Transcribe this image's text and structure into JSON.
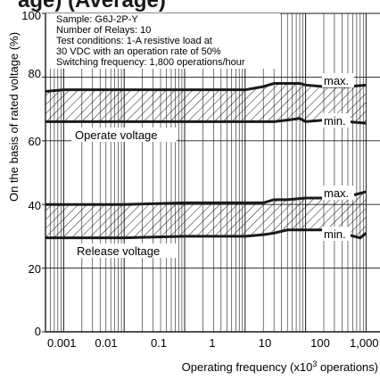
{
  "chart_data": {
    "type": "area",
    "title": "age) (Average)",
    "xlabel_main": "Operating frequency (x10",
    "xlabel_sup": "3",
    "xlabel_tail": " operations)",
    "ylabel": "On the basis of rated voltage (%)",
    "x_scale": "log",
    "xlim": [
      0.0005,
      170
    ],
    "ylim": [
      0,
      100
    ],
    "y_ticks": [
      0,
      20,
      40,
      60,
      80,
      100
    ],
    "y_tick_labels": [
      "0",
      "20",
      "40",
      "60",
      "80",
      "100"
    ],
    "x_ticks": [
      0.001,
      0.01,
      0.1,
      1,
      10,
      100,
      1000
    ],
    "x_tick_labels": [
      "0.001",
      "0.01",
      "0.1",
      "1",
      "10",
      "100",
      "1,000"
    ],
    "grid": true,
    "annotation_lines": [
      "Sample: G6J-2P-Y",
      "Number of Relays: 10",
      "Test conditions: 1-A resistive load at",
      "30 VDC with an operation rate of 50%",
      "Switching frequency: 1,800 operations/hour"
    ],
    "bands": [
      {
        "name": "Operate voltage",
        "max_label": "max.",
        "min_label": "min.",
        "x": [
          0.0005,
          0.001,
          0.01,
          0.1,
          0.5,
          1,
          2,
          3,
          5,
          8,
          10,
          20,
          50,
          100
        ],
        "max": [
          75.5,
          76,
          76,
          76,
          76,
          76,
          77,
          78,
          78,
          78,
          77.5,
          77,
          77,
          77.5
        ],
        "min": [
          66,
          66,
          66,
          66,
          66,
          66,
          66,
          66,
          66.5,
          67,
          66,
          66.5,
          66,
          65.5
        ]
      },
      {
        "name": "Release voltage",
        "max_label": "max.",
        "min_label": "min.",
        "x": [
          0.0005,
          0.001,
          0.01,
          0.1,
          0.5,
          1,
          2,
          3,
          5,
          10,
          20,
          50,
          80,
          100
        ],
        "max": [
          40,
          40,
          40,
          40.5,
          40.5,
          40.5,
          40.5,
          41.5,
          41.5,
          42,
          42,
          42.5,
          43.5,
          44
        ],
        "min": [
          29.5,
          29.5,
          29.5,
          30,
          30,
          30,
          30.5,
          31,
          32,
          32,
          32,
          30.5,
          29.5,
          31
        ]
      }
    ],
    "colors": {
      "line": "#1a1a1a",
      "grid": "#1a1a1a",
      "hatch": "#1a1a1a",
      "background": "#ffffff"
    }
  }
}
